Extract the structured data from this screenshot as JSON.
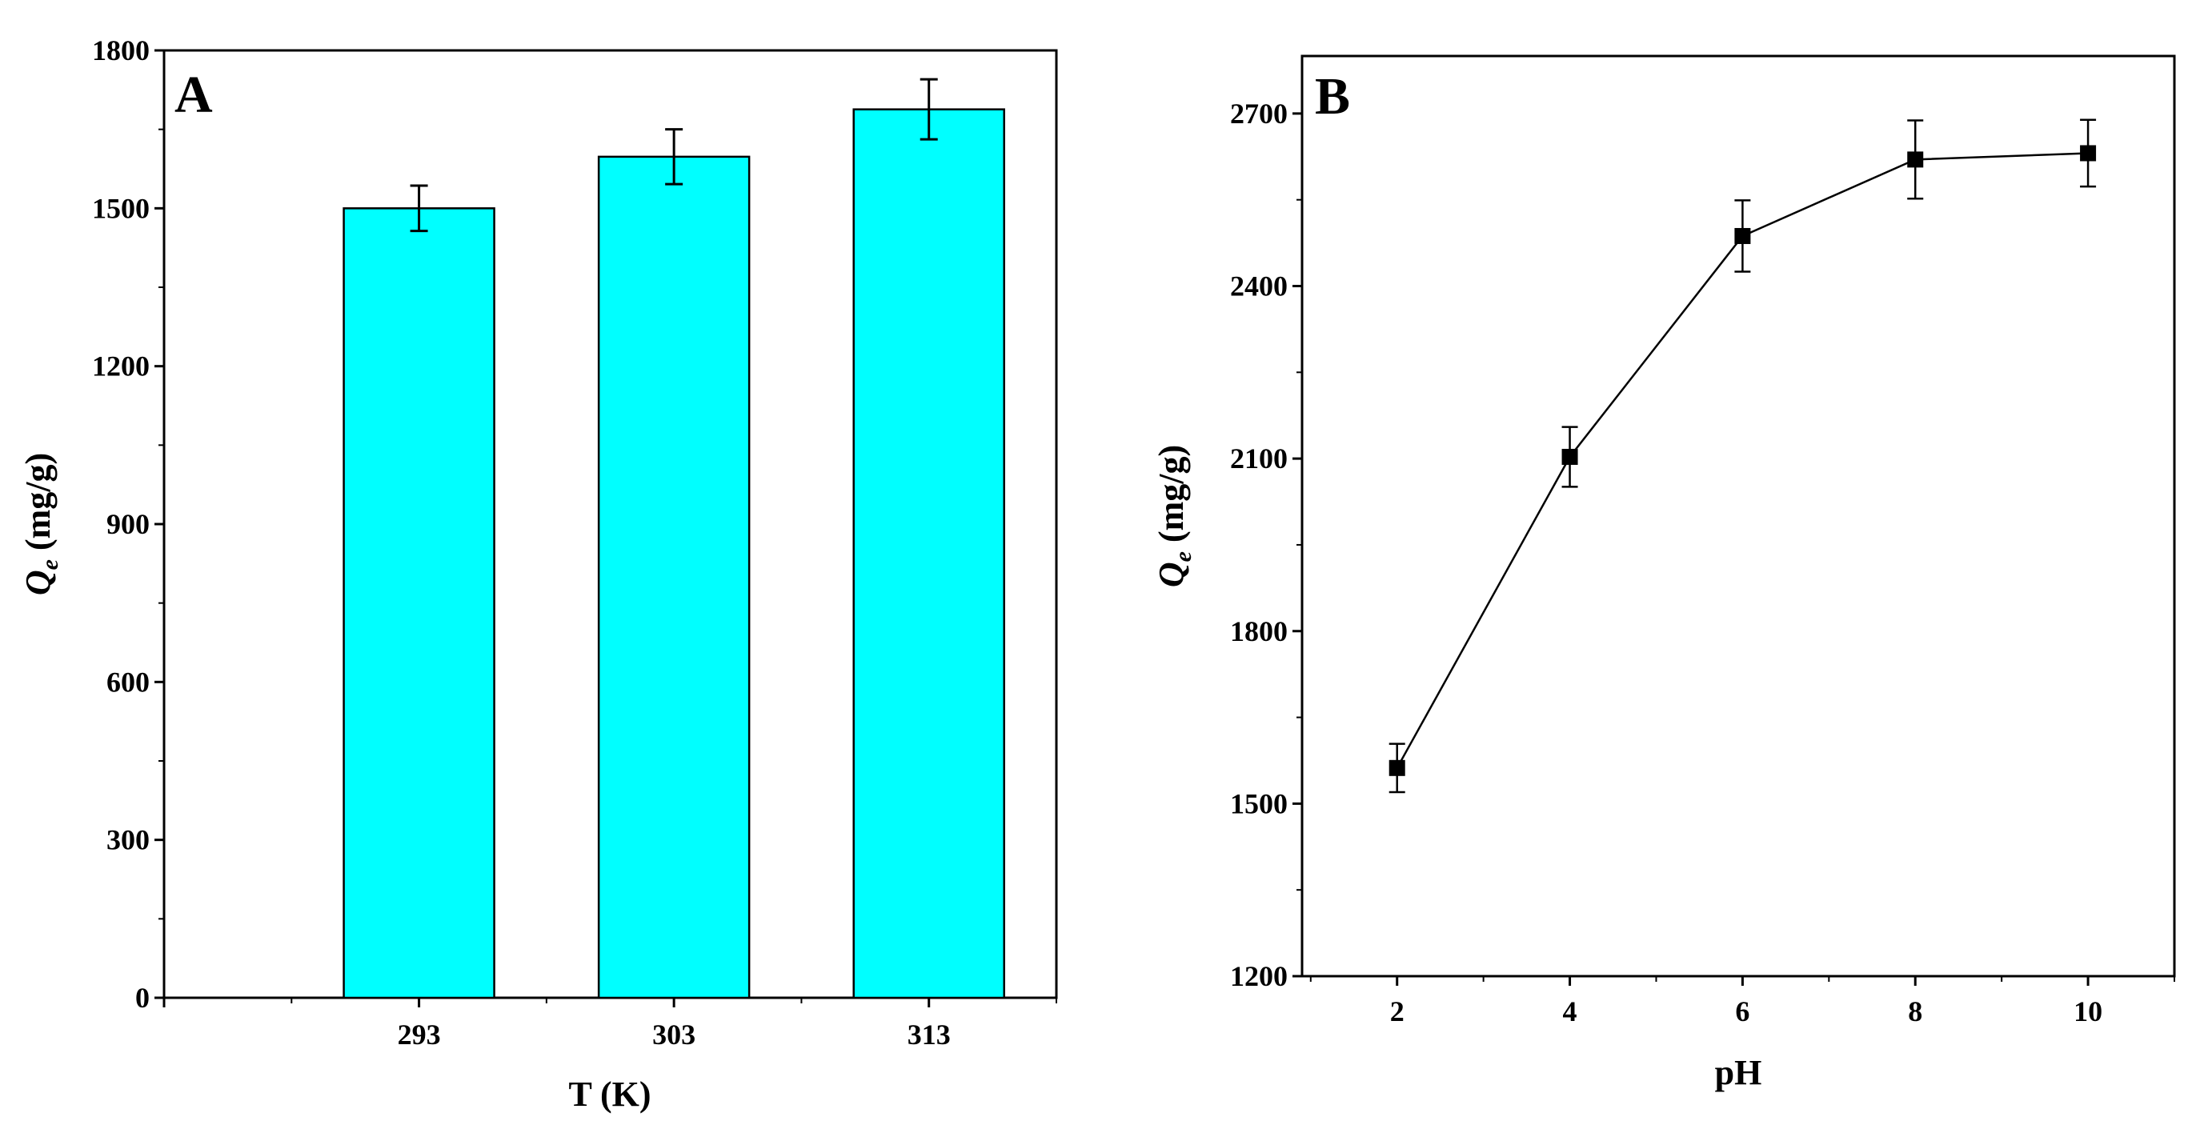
{
  "colors": {
    "bar_fill": "#00FFFF",
    "stroke": "#000000",
    "background": "#FFFFFF"
  },
  "chart_data": [
    {
      "panel": "A",
      "type": "bar",
      "categories": [
        "293",
        "303",
        "313"
      ],
      "values": [
        1500,
        1598,
        1688
      ],
      "errors": [
        43,
        52,
        57
      ],
      "ylim": [
        0,
        1800
      ],
      "yticks": [
        0,
        300,
        600,
        900,
        1200,
        1500,
        1800
      ],
      "ytick_labels": [
        "0",
        "300",
        "600",
        "900",
        "1200",
        "1500",
        "1800"
      ],
      "xlabel": "T (K)",
      "ylabel": {
        "main": "Q",
        "sub": "e",
        "units": " (mg/g)"
      },
      "grid": false
    },
    {
      "panel": "B",
      "type": "line",
      "x": [
        2,
        4,
        6,
        8,
        10
      ],
      "y": [
        1562,
        2103,
        2487,
        2620,
        2631
      ],
      "errors": [
        42,
        52,
        62,
        68,
        58
      ],
      "xlim": [
        0.9,
        11
      ],
      "ylim": [
        1200,
        2800
      ],
      "xticks": [
        2,
        4,
        6,
        8,
        10
      ],
      "xtick_labels": [
        "2",
        "4",
        "6",
        "8",
        "10"
      ],
      "yticks": [
        1200,
        1500,
        1800,
        2100,
        2400,
        2700
      ],
      "ytick_labels": [
        "1200",
        "1500",
        "1800",
        "2100",
        "2400",
        "2700"
      ],
      "xlabel": "pH",
      "ylabel": {
        "main": "Q",
        "sub": "e",
        "units": " (mg/g)"
      },
      "marker": "square",
      "grid": false
    }
  ]
}
